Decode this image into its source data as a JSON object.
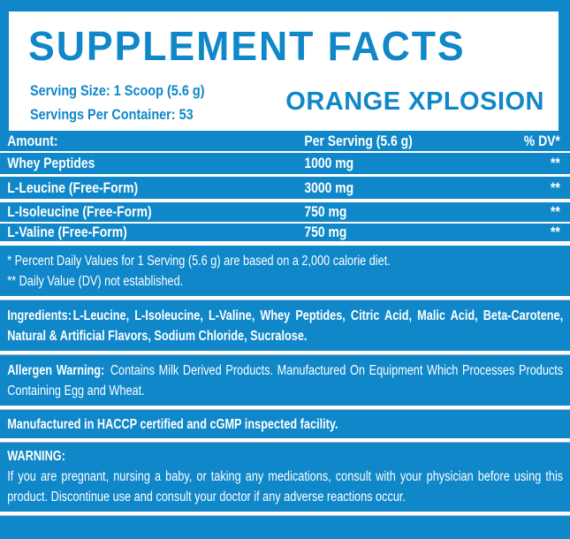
{
  "colors": {
    "blue": "#0F87C8",
    "white": "#FFFFFF"
  },
  "header": {
    "title": "SUPPLEMENT FACTS",
    "serving_size": "Serving Size: 1 Scoop (5.6 g)",
    "servings_per_container": "Servings Per Container: 53",
    "flavor": "ORANGE XPLOSION"
  },
  "table": {
    "columns": [
      "Amount:",
      "Per Serving (5.6 g)",
      "% DV*"
    ],
    "rows": [
      {
        "name": "Whey Peptides",
        "amount": "1000 mg",
        "dv": "**"
      },
      {
        "name": "L-Leucine (Free-Form)",
        "amount": "3000 mg",
        "dv": "**"
      },
      {
        "name": "L-Isoleucine (Free-Form)",
        "amount": "750 mg",
        "dv": "**"
      },
      {
        "name": "L-Valine (Free-Form)",
        "amount": "750 mg",
        "dv": "**"
      }
    ]
  },
  "footnotes": {
    "dv_note": "* Percent Daily Values for 1 Serving (5.6 g) are based on a 2,000 calorie diet.",
    "not_established": "** Daily Value (DV) not established."
  },
  "ingredients": {
    "label": "Ingredients:",
    "text": "L-Leucine, L-Isoleucine, L-Valine, Whey Peptides, Citric Acid, Malic Acid, Beta-Carotene, Natural & Artificial Flavors, Sodium Chloride, Sucralose."
  },
  "allergen": {
    "label": "Allergen Warning:",
    "text": "Contains Milk Derived Products. Manufactured On Equipment Which Processes Products Containing Egg and Wheat."
  },
  "manufactured": "Manufactured in HACCP certified and cGMP inspected facility.",
  "warning": {
    "label": "WARNING:",
    "text": "If you are pregnant, nursing a baby, or taking any medications, consult with your physician before using this product. Discontinue use and consult your doctor if any adverse reactions occur."
  }
}
